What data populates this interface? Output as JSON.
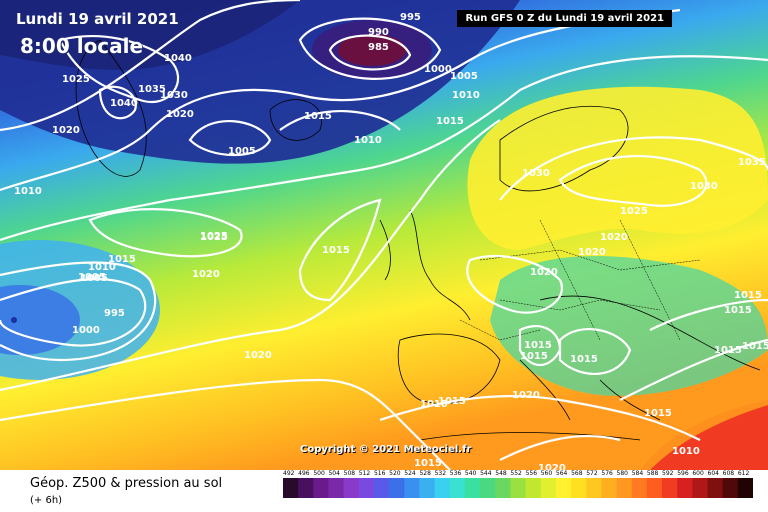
{
  "header": {
    "date_label": "Lundi 19 avril 2021",
    "time_label": "8:00 locale",
    "run_label": "Run GFS 0 Z du Lundi 19 avril 2021"
  },
  "copyright": "Copyright © 2021 Meteociel.fr",
  "footer": {
    "title": "Géop. Z500 & pression au sol",
    "subtitle": "(+ 6h)"
  },
  "scale_values": [
    "492",
    "496",
    "500",
    "504",
    "508",
    "512",
    "516",
    "520",
    "524",
    "528",
    "532",
    "536",
    "540",
    "544",
    "548",
    "552",
    "556",
    "560",
    "564",
    "568",
    "572",
    "576",
    "580",
    "584",
    "588",
    "592",
    "596",
    "600",
    "604",
    "608",
    "612"
  ],
  "colors": {
    "deep_blue": "#1c2f9c",
    "blue": "#3f78e6",
    "cyan": "#35c3f0",
    "green": "#4ed68e",
    "yellow_green": "#c8ec2e",
    "yellow": "#ffff2a",
    "orange": "#ff9a1e",
    "red": "#f03a22",
    "low_center": "#6a1040"
  },
  "isobars": {
    "labels": [
      "995",
      "990",
      "985",
      "1000",
      "1005",
      "1010",
      "1015",
      "1040",
      "1035",
      "1030",
      "1020",
      "1025",
      "1040",
      "1025",
      "1020",
      "1010",
      "1005",
      "1015",
      "1010",
      "1005",
      "1000",
      "995",
      "1015",
      "1025",
      "1020",
      "1015",
      "1030",
      "1025",
      "1020",
      "1020",
      "1030",
      "1035",
      "1015",
      "1015",
      "1015",
      "1015",
      "1015",
      "1015",
      "1015",
      "1015",
      "1020",
      "1020",
      "1010",
      "1020",
      "1010",
      "1015",
      "1005",
      "1010",
      "1015",
      "1020"
    ]
  }
}
